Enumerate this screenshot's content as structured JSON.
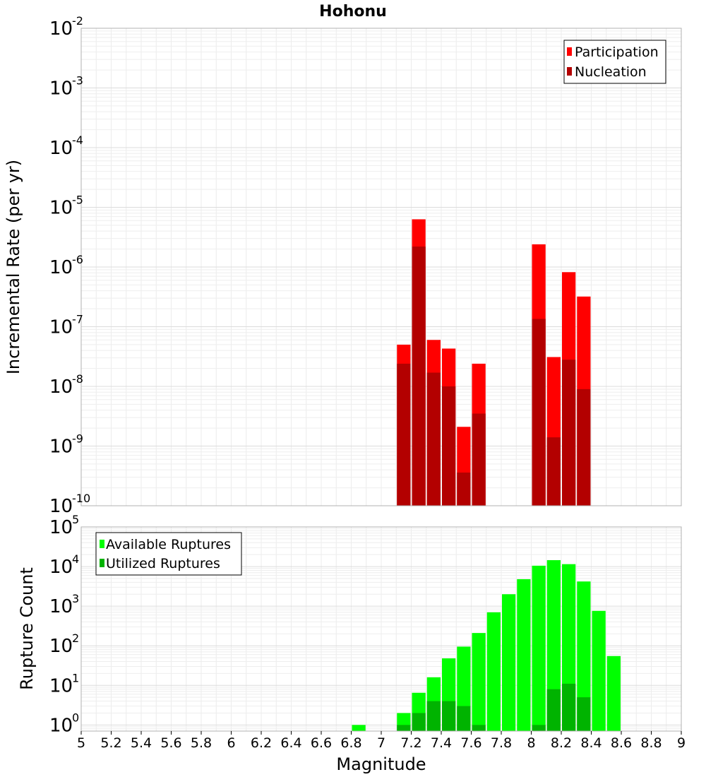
{
  "title": "Hohonu",
  "colors": {
    "participation": "#ff0000",
    "nucleation": "#b30000",
    "available": "#00ff00",
    "utilized": "#00b300",
    "grid": "#e6e6e6",
    "frame": "#b0b0b0"
  },
  "chart_data": [
    {
      "type": "bar",
      "title": "Hohonu",
      "ylabel": "Incremental Rate (per yr)",
      "xlabel": "",
      "y_scale": "log",
      "ylim": [
        1e-10,
        0.01
      ],
      "xlim": [
        5,
        9
      ],
      "grid": true,
      "legend_position": "top-right",
      "y_tick_exponents": [
        "-2",
        "-3",
        "-4",
        "-5",
        "-6",
        "-7",
        "-8",
        "-9",
        "-10"
      ],
      "bar_width": 0.1,
      "legend": [
        "Participation",
        "Nucleation"
      ],
      "series": [
        {
          "name": "Participation",
          "color": "#ff0000",
          "points": [
            {
              "x": 7.15,
              "y": 5e-08
            },
            {
              "x": 7.25,
              "y": 6.3e-06
            },
            {
              "x": 7.35,
              "y": 6e-08
            },
            {
              "x": 7.45,
              "y": 4.3e-08
            },
            {
              "x": 7.55,
              "y": 2.1e-09
            },
            {
              "x": 7.65,
              "y": 2.4e-08
            },
            {
              "x": 8.05,
              "y": 2.4e-06
            },
            {
              "x": 8.15,
              "y": 3.1e-08
            },
            {
              "x": 8.25,
              "y": 8.2e-07
            },
            {
              "x": 8.35,
              "y": 3.2e-07
            }
          ]
        },
        {
          "name": "Nucleation",
          "color": "#b30000",
          "points": [
            {
              "x": 7.15,
              "y": 2.4e-08
            },
            {
              "x": 7.25,
              "y": 2.2e-06
            },
            {
              "x": 7.35,
              "y": 1.7e-08
            },
            {
              "x": 7.45,
              "y": 1e-08
            },
            {
              "x": 7.55,
              "y": 3.6e-10
            },
            {
              "x": 7.65,
              "y": 3.5e-09
            },
            {
              "x": 8.05,
              "y": 1.35e-07
            },
            {
              "x": 8.15,
              "y": 1.4e-09
            },
            {
              "x": 8.25,
              "y": 2.8e-08
            },
            {
              "x": 8.35,
              "y": 9e-09
            }
          ]
        }
      ]
    },
    {
      "type": "bar",
      "ylabel": "Rupture Count",
      "xlabel": "Magnitude",
      "y_scale": "log",
      "ylim": [
        0.7,
        100000
      ],
      "xlim": [
        5,
        9
      ],
      "grid": true,
      "legend_position": "top-left",
      "y_tick_exponents": [
        "5",
        "4",
        "3",
        "2",
        "1",
        "0"
      ],
      "bar_width": 0.1,
      "x_ticks": [
        "5",
        "5.2",
        "5.4",
        "5.6",
        "5.8",
        "6",
        "6.2",
        "6.4",
        "6.6",
        "6.8",
        "7",
        "7.2",
        "7.4",
        "7.6",
        "7.8",
        "8",
        "8.2",
        "8.4",
        "8.6",
        "8.8",
        "9"
      ],
      "legend": [
        "Available Ruptures",
        "Utilized Ruptures"
      ],
      "series": [
        {
          "name": "Available Ruptures",
          "color": "#00ff00",
          "points": [
            {
              "x": 6.85,
              "y": 1
            },
            {
              "x": 7.15,
              "y": 2
            },
            {
              "x": 7.25,
              "y": 6.5
            },
            {
              "x": 7.35,
              "y": 16
            },
            {
              "x": 7.45,
              "y": 48
            },
            {
              "x": 7.55,
              "y": 95
            },
            {
              "x": 7.65,
              "y": 210
            },
            {
              "x": 7.75,
              "y": 700
            },
            {
              "x": 7.85,
              "y": 2000
            },
            {
              "x": 7.95,
              "y": 4800
            },
            {
              "x": 8.05,
              "y": 10500
            },
            {
              "x": 8.15,
              "y": 14500
            },
            {
              "x": 8.25,
              "y": 11500
            },
            {
              "x": 8.35,
              "y": 4200
            },
            {
              "x": 8.45,
              "y": 760
            },
            {
              "x": 8.55,
              "y": 55
            }
          ]
        },
        {
          "name": "Utilized Ruptures",
          "color": "#00b300",
          "points": [
            {
              "x": 7.15,
              "y": 1
            },
            {
              "x": 7.25,
              "y": 2
            },
            {
              "x": 7.35,
              "y": 4
            },
            {
              "x": 7.45,
              "y": 4
            },
            {
              "x": 7.55,
              "y": 3
            },
            {
              "x": 7.65,
              "y": 1
            },
            {
              "x": 8.05,
              "y": 1
            },
            {
              "x": 8.15,
              "y": 8
            },
            {
              "x": 8.25,
              "y": 11
            },
            {
              "x": 8.35,
              "y": 5
            }
          ]
        }
      ]
    }
  ]
}
